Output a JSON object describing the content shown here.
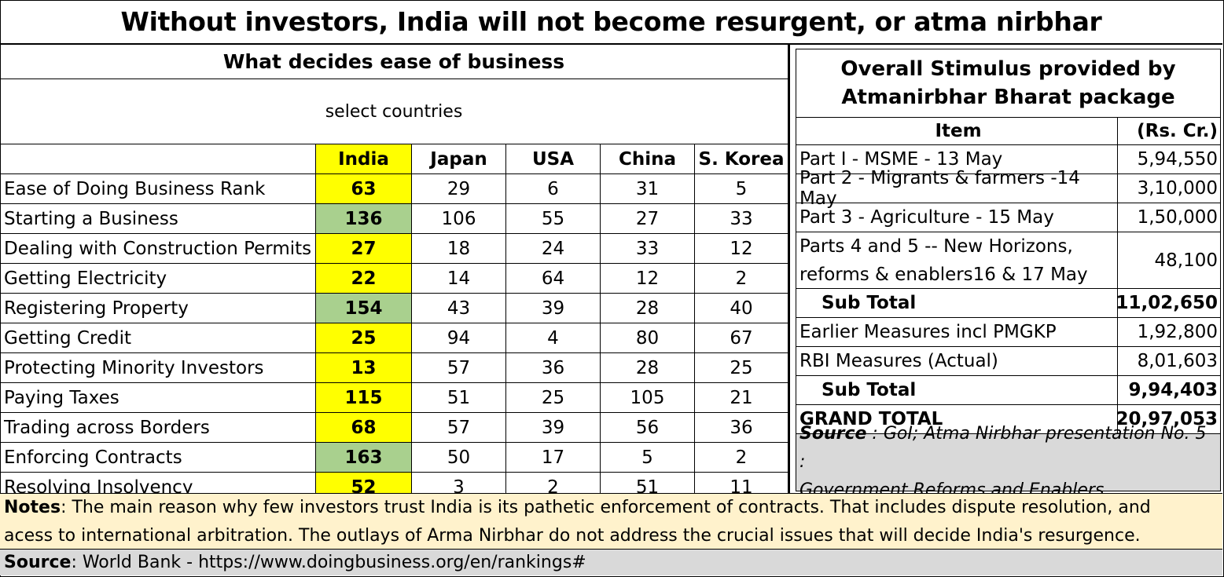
{
  "title": "Without investors, India will not become resurgent, or atma nirbhar",
  "left_table": {
    "heading": "What decides  ease of business",
    "subheading": "select countries",
    "columns": [
      "",
      "India",
      "Japan",
      "USA",
      "China",
      "S. Korea"
    ],
    "rows": [
      {
        "label": "Ease of Doing Business Rank",
        "values": [
          "63",
          "29",
          "6",
          "31",
          "5"
        ],
        "india_bg": "yellow"
      },
      {
        "label": "Starting a Business",
        "values": [
          "136",
          "106",
          "55",
          "27",
          "33"
        ],
        "india_bg": "green"
      },
      {
        "label": "Dealing with Construction Permits",
        "values": [
          "27",
          "18",
          "24",
          "33",
          "12"
        ],
        "india_bg": "yellow"
      },
      {
        "label": "Getting Electricity",
        "values": [
          "22",
          "14",
          "64",
          "12",
          "2"
        ],
        "india_bg": "yellow"
      },
      {
        "label": "Registering Property",
        "values": [
          "154",
          "43",
          "39",
          "28",
          "40"
        ],
        "india_bg": "green"
      },
      {
        "label": "Getting Credit",
        "values": [
          "25",
          "94",
          "4",
          "80",
          "67"
        ],
        "india_bg": "yellow"
      },
      {
        "label": "Protecting Minority Investors",
        "values": [
          "13",
          "57",
          "36",
          "28",
          "25"
        ],
        "india_bg": "yellow"
      },
      {
        "label": "Paying Taxes",
        "values": [
          "115",
          "51",
          "25",
          "105",
          "21"
        ],
        "india_bg": "yellow"
      },
      {
        "label": "Trading across Borders",
        "values": [
          "68",
          "57",
          "39",
          "56",
          "36"
        ],
        "india_bg": "yellow"
      },
      {
        "label": "Enforcing Contracts",
        "values": [
          "163",
          "50",
          "17",
          "5",
          "2"
        ],
        "india_bg": "green"
      },
      {
        "label": "Resolving Insolvency",
        "values": [
          "52",
          "3",
          "2",
          "51",
          "11"
        ],
        "india_bg": "yellow"
      }
    ]
  },
  "right_table": {
    "title_line1": "Overall Stimulus provided by",
    "title_line2": "Atmanirbhar Bharat package",
    "col_item": "Item",
    "col_amount": "(Rs. Cr.)",
    "rows": [
      {
        "item": "Part I - MSME -  13 May",
        "amount": "5,94,550"
      },
      {
        "item": "Part 2 - Migrants & farmers -14 May",
        "amount": "3,10,000"
      },
      {
        "item": "Part 3 - Agriculture - 15 May",
        "amount": "1,50,000"
      },
      {
        "item_line1": "Parts 4 and 5  -- New Horizons,",
        "item_line2": "reforms & enablers16 & 17 May",
        "amount": "48,100"
      },
      {
        "item": "Sub Total",
        "amount": "11,02,650"
      },
      {
        "item": "Earlier Measures incl PMGKP",
        "amount": "1,92,800"
      },
      {
        "item": "RBI Measures (Actual)",
        "amount": "8,01,603"
      },
      {
        "item": "Sub Total",
        "amount": "9,94,403"
      },
      {
        "item": "GRAND TOTAL",
        "amount": "20,97,053"
      }
    ],
    "source_label": "Source",
    "source_line1": " : GoI; Atma Nirbhar presentation No. 5 :",
    "source_line2": "Government Reforms and Enablers"
  },
  "notes": {
    "label": "Notes",
    "line1": ": The main reason why few investors trust India is its pathetic enforcement of contracts.  That includes dispute resolution, and",
    "line2": "acess to international arbitration.  The outlays of Arma Nirbhar do not address the crucial issues that will decide India's resurgence."
  },
  "footer": {
    "label": "Source",
    "text": ": World Bank - https://www.doingbusiness.org/en/rankings#"
  },
  "colors": {
    "highlight_yellow": "#ffff00",
    "highlight_green": "#a9d08e",
    "notes_bg": "#fff2cc",
    "source_bg": "#d9d9d9"
  }
}
